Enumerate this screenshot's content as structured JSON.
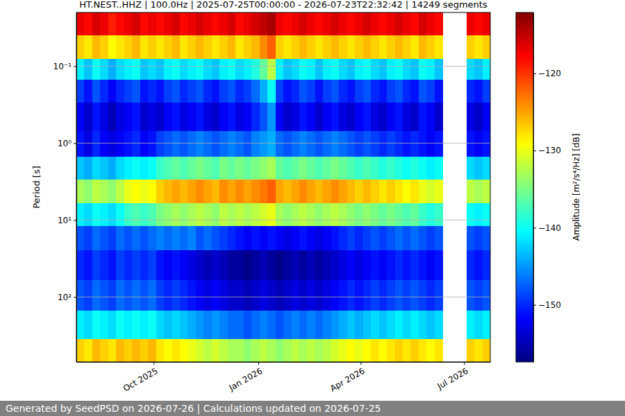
{
  "chart_data": {
    "type": "heatmap",
    "title": "HT.NEST..HHZ | 100.0Hz | 2025-07-25T00:00:00 - 2026-07-23T22:32:42 | 14249 segments",
    "y_label": "Period [s]",
    "x_edges": [
      "2025-07-25",
      "2025-08-01",
      "2025-08-08",
      "2025-08-15",
      "2025-08-22",
      "2025-08-29",
      "2025-09-05",
      "2025-09-12",
      "2025-09-19",
      "2025-09-26",
      "2025-10-03",
      "2025-10-10",
      "2025-10-17",
      "2025-10-24",
      "2025-10-31",
      "2025-11-07",
      "2025-11-14",
      "2025-11-21",
      "2025-11-28",
      "2025-12-05",
      "2025-12-12",
      "2025-12-19",
      "2025-12-26",
      "2026-01-02",
      "2026-01-09",
      "2026-01-16",
      "2026-01-23",
      "2026-01-30",
      "2026-02-06",
      "2026-02-13",
      "2026-02-20",
      "2026-02-27",
      "2026-03-06",
      "2026-03-13",
      "2026-03-20",
      "2026-03-27",
      "2026-04-03",
      "2026-04-10",
      "2026-04-17",
      "2026-04-24",
      "2026-05-01",
      "2026-05-08",
      "2026-05-15",
      "2026-05-22",
      "2026-05-29",
      "2026-06-05",
      "2026-06-12",
      "2026-06-19",
      "2026-06-26",
      "2026-07-03",
      "2026-07-10",
      "2026-07-17",
      "2026-07-24"
    ],
    "y_edges": [
      0.02,
      0.04,
      0.08,
      0.15,
      0.3,
      0.7,
      1.5,
      3,
      6,
      12,
      25,
      60,
      150,
      350,
      700
    ],
    "cells": [
      [
        -117,
        -118,
        -116,
        -117,
        -119,
        -118,
        -117,
        -116,
        -118,
        -117,
        -118,
        -117,
        -116,
        -118,
        -117,
        -116,
        -117,
        -118,
        -117,
        -116,
        -118,
        -117,
        -116,
        -115,
        -114,
        -117,
        -118,
        -117,
        -116,
        -117,
        -118,
        -117,
        -116,
        -117,
        -118,
        -117,
        -116,
        -117,
        -118,
        -117,
        -116,
        -117,
        -118,
        -116,
        -117,
        -118,
        null,
        null,
        null,
        -117,
        -118,
        -117
      ],
      [
        -127,
        -128,
        -126,
        -127,
        -129,
        -128,
        -127,
        -126,
        -128,
        -127,
        -128,
        -127,
        -126,
        -128,
        -127,
        -126,
        -127,
        -128,
        -127,
        -126,
        -128,
        -127,
        -126,
        -124,
        -122,
        -127,
        -128,
        -127,
        -126,
        -127,
        -128,
        -127,
        -126,
        -127,
        -128,
        -127,
        -126,
        -127,
        -128,
        -127,
        -126,
        -127,
        -128,
        -126,
        -127,
        -128,
        null,
        null,
        null,
        -127,
        -128,
        -127
      ],
      [
        -141,
        -143,
        -140,
        -142,
        -144,
        -142,
        -141,
        -140,
        -143,
        -142,
        -143,
        -141,
        -140,
        -142,
        -141,
        -140,
        -142,
        -143,
        -141,
        -140,
        -142,
        -141,
        -139,
        -136,
        -132,
        -141,
        -143,
        -142,
        -140,
        -141,
        -143,
        -141,
        -140,
        -142,
        -143,
        -141,
        -140,
        -142,
        -143,
        -141,
        -140,
        -142,
        -143,
        -140,
        -141,
        -143,
        null,
        null,
        null,
        -142,
        -143,
        -141
      ],
      [
        -149,
        -151,
        -148,
        -150,
        -152,
        -150,
        -149,
        -148,
        -151,
        -150,
        -151,
        -149,
        -148,
        -150,
        -149,
        -148,
        -150,
        -151,
        -149,
        -148,
        -150,
        -149,
        -147,
        -144,
        -140,
        -149,
        -151,
        -150,
        -148,
        -149,
        -151,
        -149,
        -148,
        -150,
        -151,
        -149,
        -148,
        -150,
        -151,
        -149,
        -148,
        -150,
        -151,
        -148,
        -149,
        -151,
        null,
        null,
        null,
        -150,
        -151,
        -149
      ],
      [
        -152,
        -154,
        -151,
        -153,
        -155,
        -153,
        -152,
        -151,
        -154,
        -153,
        -154,
        -152,
        -151,
        -153,
        -152,
        -151,
        -153,
        -154,
        -152,
        -151,
        -153,
        -152,
        -150,
        -148,
        -145,
        -152,
        -154,
        -153,
        -151,
        -152,
        -154,
        -152,
        -151,
        -153,
        -154,
        -152,
        -151,
        -153,
        -154,
        -152,
        -151,
        -153,
        -154,
        -151,
        -152,
        -154,
        null,
        null,
        null,
        -153,
        -154,
        -152
      ],
      [
        -151,
        -153,
        -150,
        -152,
        -153,
        -152,
        -151,
        -150,
        -152,
        -151,
        -149,
        -148,
        -147,
        -148,
        -147,
        -146,
        -147,
        -148,
        -147,
        -146,
        -147,
        -148,
        -146,
        -145,
        -144,
        -147,
        -148,
        -147,
        -146,
        -147,
        -148,
        -147,
        -146,
        -147,
        -148,
        -149,
        -148,
        -149,
        -150,
        -149,
        -150,
        -151,
        -150,
        -151,
        -152,
        -151,
        null,
        null,
        null,
        -151,
        -152,
        -151
      ],
      [
        -143,
        -144,
        -142,
        -143,
        -144,
        -142,
        -141,
        -140,
        -141,
        -140,
        -138,
        -137,
        -136,
        -137,
        -136,
        -135,
        -136,
        -137,
        -135,
        -136,
        -135,
        -136,
        -135,
        -134,
        -133,
        -136,
        -137,
        -136,
        -135,
        -136,
        -137,
        -136,
        -135,
        -136,
        -137,
        -138,
        -137,
        -138,
        -139,
        -138,
        -139,
        -140,
        -139,
        -140,
        -141,
        -140,
        null,
        null,
        null,
        -142,
        -143,
        -142
      ],
      [
        -133,
        -134,
        -132,
        -133,
        -134,
        -132,
        -130,
        -129,
        -130,
        -129,
        -127,
        -126,
        -125,
        -126,
        -125,
        -124,
        -125,
        -126,
        -124,
        -125,
        -124,
        -125,
        -124,
        -123,
        -122,
        -125,
        -126,
        -125,
        -124,
        -125,
        -126,
        -125,
        -124,
        -125,
        -126,
        -127,
        -126,
        -127,
        -128,
        -127,
        -128,
        -129,
        -128,
        -130,
        -131,
        -130,
        null,
        null,
        null,
        -132,
        -133,
        -132
      ],
      [
        -141,
        -142,
        -140,
        -141,
        -142,
        -140,
        -138,
        -137,
        -138,
        -137,
        -135,
        -134,
        -133,
        -134,
        -133,
        -132,
        -133,
        -134,
        -132,
        -133,
        -132,
        -133,
        -132,
        -131,
        -130,
        -133,
        -134,
        -133,
        -132,
        -133,
        -134,
        -133,
        -132,
        -133,
        -134,
        -135,
        -134,
        -135,
        -136,
        -135,
        -136,
        -137,
        -136,
        -138,
        -139,
        -138,
        null,
        null,
        null,
        -140,
        -141,
        -140
      ],
      [
        -148,
        -149,
        -147,
        -148,
        -149,
        -147,
        -148,
        -147,
        -148,
        -147,
        -146,
        -147,
        -146,
        -147,
        -146,
        -148,
        -147,
        -148,
        -149,
        -150,
        -151,
        -152,
        -151,
        -152,
        -151,
        -152,
        -153,
        -152,
        -151,
        -152,
        -153,
        -152,
        -151,
        -150,
        -149,
        -150,
        -149,
        -148,
        -149,
        -148,
        -147,
        -148,
        -147,
        -148,
        -149,
        -148,
        null,
        null,
        null,
        -148,
        -149,
        -148
      ],
      [
        -150,
        -151,
        -149,
        -150,
        -151,
        -149,
        -150,
        -149,
        -150,
        -149,
        -151,
        -152,
        -151,
        -152,
        -153,
        -154,
        -155,
        -154,
        -155,
        -156,
        -156,
        -157,
        -156,
        -155,
        -156,
        -157,
        -156,
        -155,
        -156,
        -155,
        -156,
        -155,
        -154,
        -153,
        -152,
        -153,
        -152,
        -151,
        -152,
        -151,
        -150,
        -151,
        -150,
        -151,
        -152,
        -151,
        null,
        null,
        null,
        -150,
        -151,
        -150
      ],
      [
        -148,
        -149,
        -147,
        -148,
        -149,
        -147,
        -148,
        -147,
        -148,
        -147,
        -149,
        -150,
        -149,
        -150,
        -151,
        -152,
        -153,
        -152,
        -153,
        -154,
        -154,
        -155,
        -154,
        -153,
        -154,
        -155,
        -154,
        -153,
        -154,
        -153,
        -154,
        -153,
        -152,
        -151,
        -150,
        -151,
        -150,
        -149,
        -150,
        -149,
        -148,
        -149,
        -148,
        -149,
        -150,
        -149,
        null,
        null,
        null,
        -148,
        -149,
        -148
      ],
      [
        -141,
        -142,
        -140,
        -141,
        -142,
        -140,
        -141,
        -140,
        -141,
        -140,
        -142,
        -143,
        -142,
        -143,
        -144,
        -145,
        -146,
        -145,
        -146,
        -147,
        -147,
        -148,
        -147,
        -146,
        -147,
        -148,
        -147,
        -146,
        -147,
        -146,
        -147,
        -146,
        -145,
        -144,
        -143,
        -144,
        -143,
        -142,
        -143,
        -142,
        -141,
        -142,
        -141,
        -142,
        -143,
        -142,
        null,
        null,
        null,
        -141,
        -142,
        -141
      ],
      [
        -127,
        -128,
        -126,
        -127,
        -128,
        -126,
        -127,
        -126,
        -127,
        -126,
        -128,
        -129,
        -128,
        -129,
        -130,
        -131,
        -132,
        -131,
        -132,
        -133,
        -133,
        -134,
        -133,
        -132,
        -133,
        -134,
        -133,
        -132,
        -133,
        -132,
        -133,
        -132,
        -131,
        -130,
        -129,
        -130,
        -129,
        -128,
        -129,
        -128,
        -127,
        -128,
        -127,
        -128,
        -129,
        -128,
        null,
        null,
        null,
        -127,
        -128,
        -127
      ]
    ],
    "xlim": [
      "2025-07-25T00:00:00",
      "2026-07-23T22:32:42"
    ],
    "ylim": [
      0.02,
      700
    ],
    "xticks": [
      {
        "value": "2025-10-01",
        "label": "Oct 2025"
      },
      {
        "value": "2026-01-01",
        "label": "Jan 2026"
      },
      {
        "value": "2026-04-01",
        "label": "Apr 2026"
      },
      {
        "value": "2026-07-01",
        "label": "Jul 2026"
      }
    ],
    "yticks": [
      {
        "value": 0.1,
        "label": "10⁻¹"
      },
      {
        "value": 1,
        "label": "10⁰"
      },
      {
        "value": 10,
        "label": "10¹"
      },
      {
        "value": 100,
        "label": "10²"
      }
    ],
    "log": "y",
    "grid": "y",
    "color": "jet",
    "colorbar": {
      "label": "Amplitude [m²/s⁴/Hz] [dB]",
      "range": [
        -157.4,
        -112.1
      ],
      "ticks": [
        {
          "value": -120,
          "label": "−120"
        },
        {
          "value": -130,
          "label": "−130"
        },
        {
          "value": -140,
          "label": "−140"
        },
        {
          "value": -150,
          "label": "−150"
        }
      ]
    }
  },
  "footer": "Generated by SeedPSD on 2026-07-26 | Calculations updated on 2026-07-25"
}
